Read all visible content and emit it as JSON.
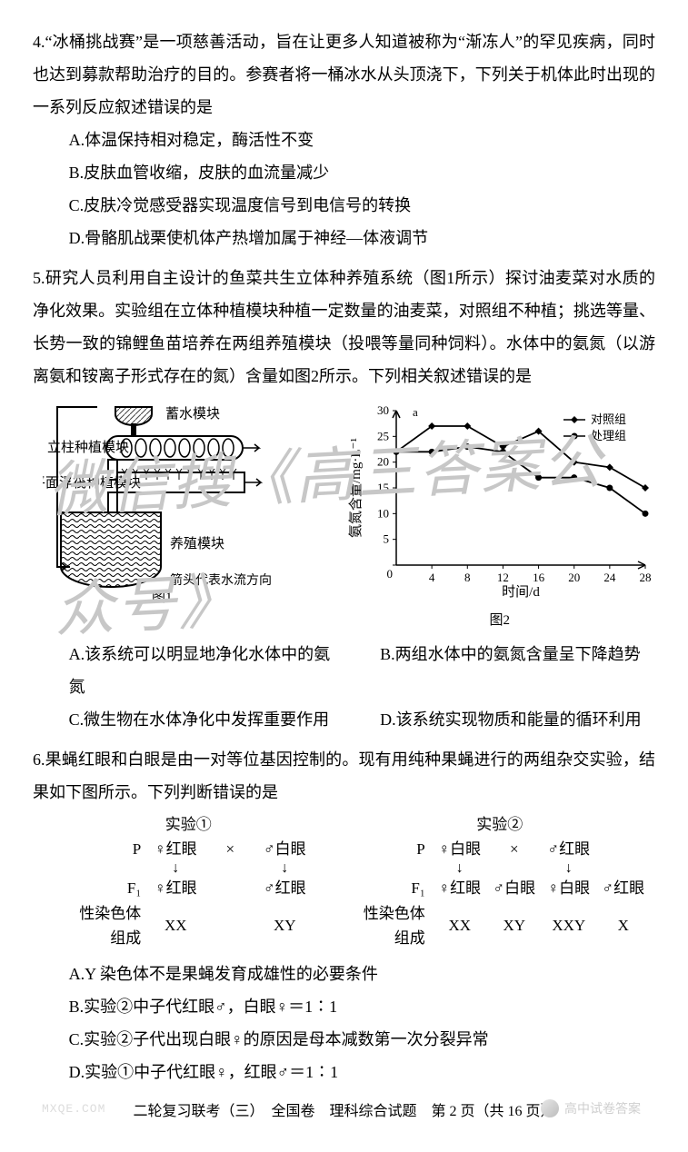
{
  "q4": {
    "num": "4.",
    "stem": "“冰桶挑战赛”是一项慈善活动，旨在让更多人知道被称为“渐冻人”的罕见疾病，同时也达到募款帮助治疗的目的。参赛者将一桶冰水从头顶浇下，下列关于机体此时出现的一系列反应叙述错误的是",
    "opts": {
      "A": "A.体温保持相对稳定，酶活性不变",
      "B": "B.皮肤血管收缩，皮肤的血流量减少",
      "C": "C.皮肤冷觉感受器实现温度信号到电信号的转换",
      "D": "D.骨骼肌战栗使机体产热增加属于神经—体液调节"
    }
  },
  "q5": {
    "num": "5.",
    "stem": "研究人员利用自主设计的鱼菜共生立体种养殖系统（图1所示）探讨油麦菜对水质的净化效果。实验组在立体种植模块种植一定数量的油麦菜，对照组不种植；挑选等量、长势一致的锦鲤鱼苗培养在两组养殖模块（投喂等量同种饲料）。水体中的氨氮（以游离氨和铵离子形式存在的氮）含量如图2所示。下列相关叙述错误的是",
    "fig1": {
      "labels": {
        "storage": "蓄水模块",
        "column": "立柱种植模块",
        "float": "平面浮筏种植模块",
        "farm": "养殖模块",
        "arrow_note": "箭头代表水流方向",
        "caption": "图1"
      },
      "colors": {
        "line": "#000000",
        "hatch": "#444444",
        "bg": "#ffffff"
      }
    },
    "fig2": {
      "type": "line",
      "x": [
        0,
        4,
        8,
        12,
        16,
        20,
        24,
        28
      ],
      "series": [
        {
          "name": "对照组",
          "marker": "diamond",
          "y": [
            22,
            27,
            27,
            23,
            26,
            20,
            19,
            15
          ],
          "color": "#000000"
        },
        {
          "name": "处理组",
          "marker": "circle",
          "y": [
            22,
            22,
            23,
            22,
            17,
            17,
            15,
            10
          ],
          "color": "#000000"
        }
      ],
      "xlabel": "时间/d",
      "ylabel": "氨氮含量/mg·L⁻¹",
      "ylim": [
        0,
        30
      ],
      "ystep": 5,
      "xlim": [
        0,
        28
      ],
      "xstep": 4,
      "caption": "图2",
      "a_label": "a",
      "background_color": "#ffffff",
      "axis_color": "#000000",
      "label_fontsize": 15,
      "tick_fontsize": 13
    },
    "opts": {
      "A": "A.该系统可以明显地净化水体中的氨氮",
      "B": "B.两组水体中的氨氮含量呈下降趋势",
      "C": "C.微生物在水体净化中发挥重要作用",
      "D": "D.该系统实现物质和能量的循环利用"
    }
  },
  "q6": {
    "num": "6.",
    "stem": "果蝇红眼和白眼是由一对等位基因控制的。现有用纯种果蝇进行的两组杂交实验，结果如下图所示。下列判断错误的是",
    "cross1": {
      "title": "实验①",
      "P": [
        "♀红眼",
        "×",
        "♂白眼"
      ],
      "F1": [
        "♀红眼",
        "",
        "♂红眼"
      ],
      "chr": [
        "XX",
        "",
        "XY"
      ]
    },
    "cross2": {
      "title": "实验②",
      "P": [
        "♀白眼",
        "×",
        "♂红眼"
      ],
      "F1": [
        "♀红眼",
        "♂白眼",
        "♀白眼",
        "♂红眼"
      ],
      "chr": [
        "XX",
        "XY",
        "XXY",
        "X"
      ]
    },
    "rowLabels": {
      "P": "P",
      "F1": "F₁",
      "chr": "性染色体\n组成"
    },
    "opts": {
      "A": "A.Y 染色体不是果蝇发育成雄性的必要条件",
      "B": "B.实验②中子代红眼♂，白眼♀＝1∶1",
      "C": "C.实验②子代出现白眼♀的原因是母本减数第一次分裂异常",
      "D": "D.实验①中子代红眼♀，红眼♂＝1∶1"
    }
  },
  "footer": "二轮复习联考（三）　全国卷　理科综合试题　第 2 页（共 16 页）",
  "watermark_main": "微信搜《高三答案公众号》",
  "watermark_corner": "高中试卷答案",
  "watermark_left": "MXQE.COM"
}
